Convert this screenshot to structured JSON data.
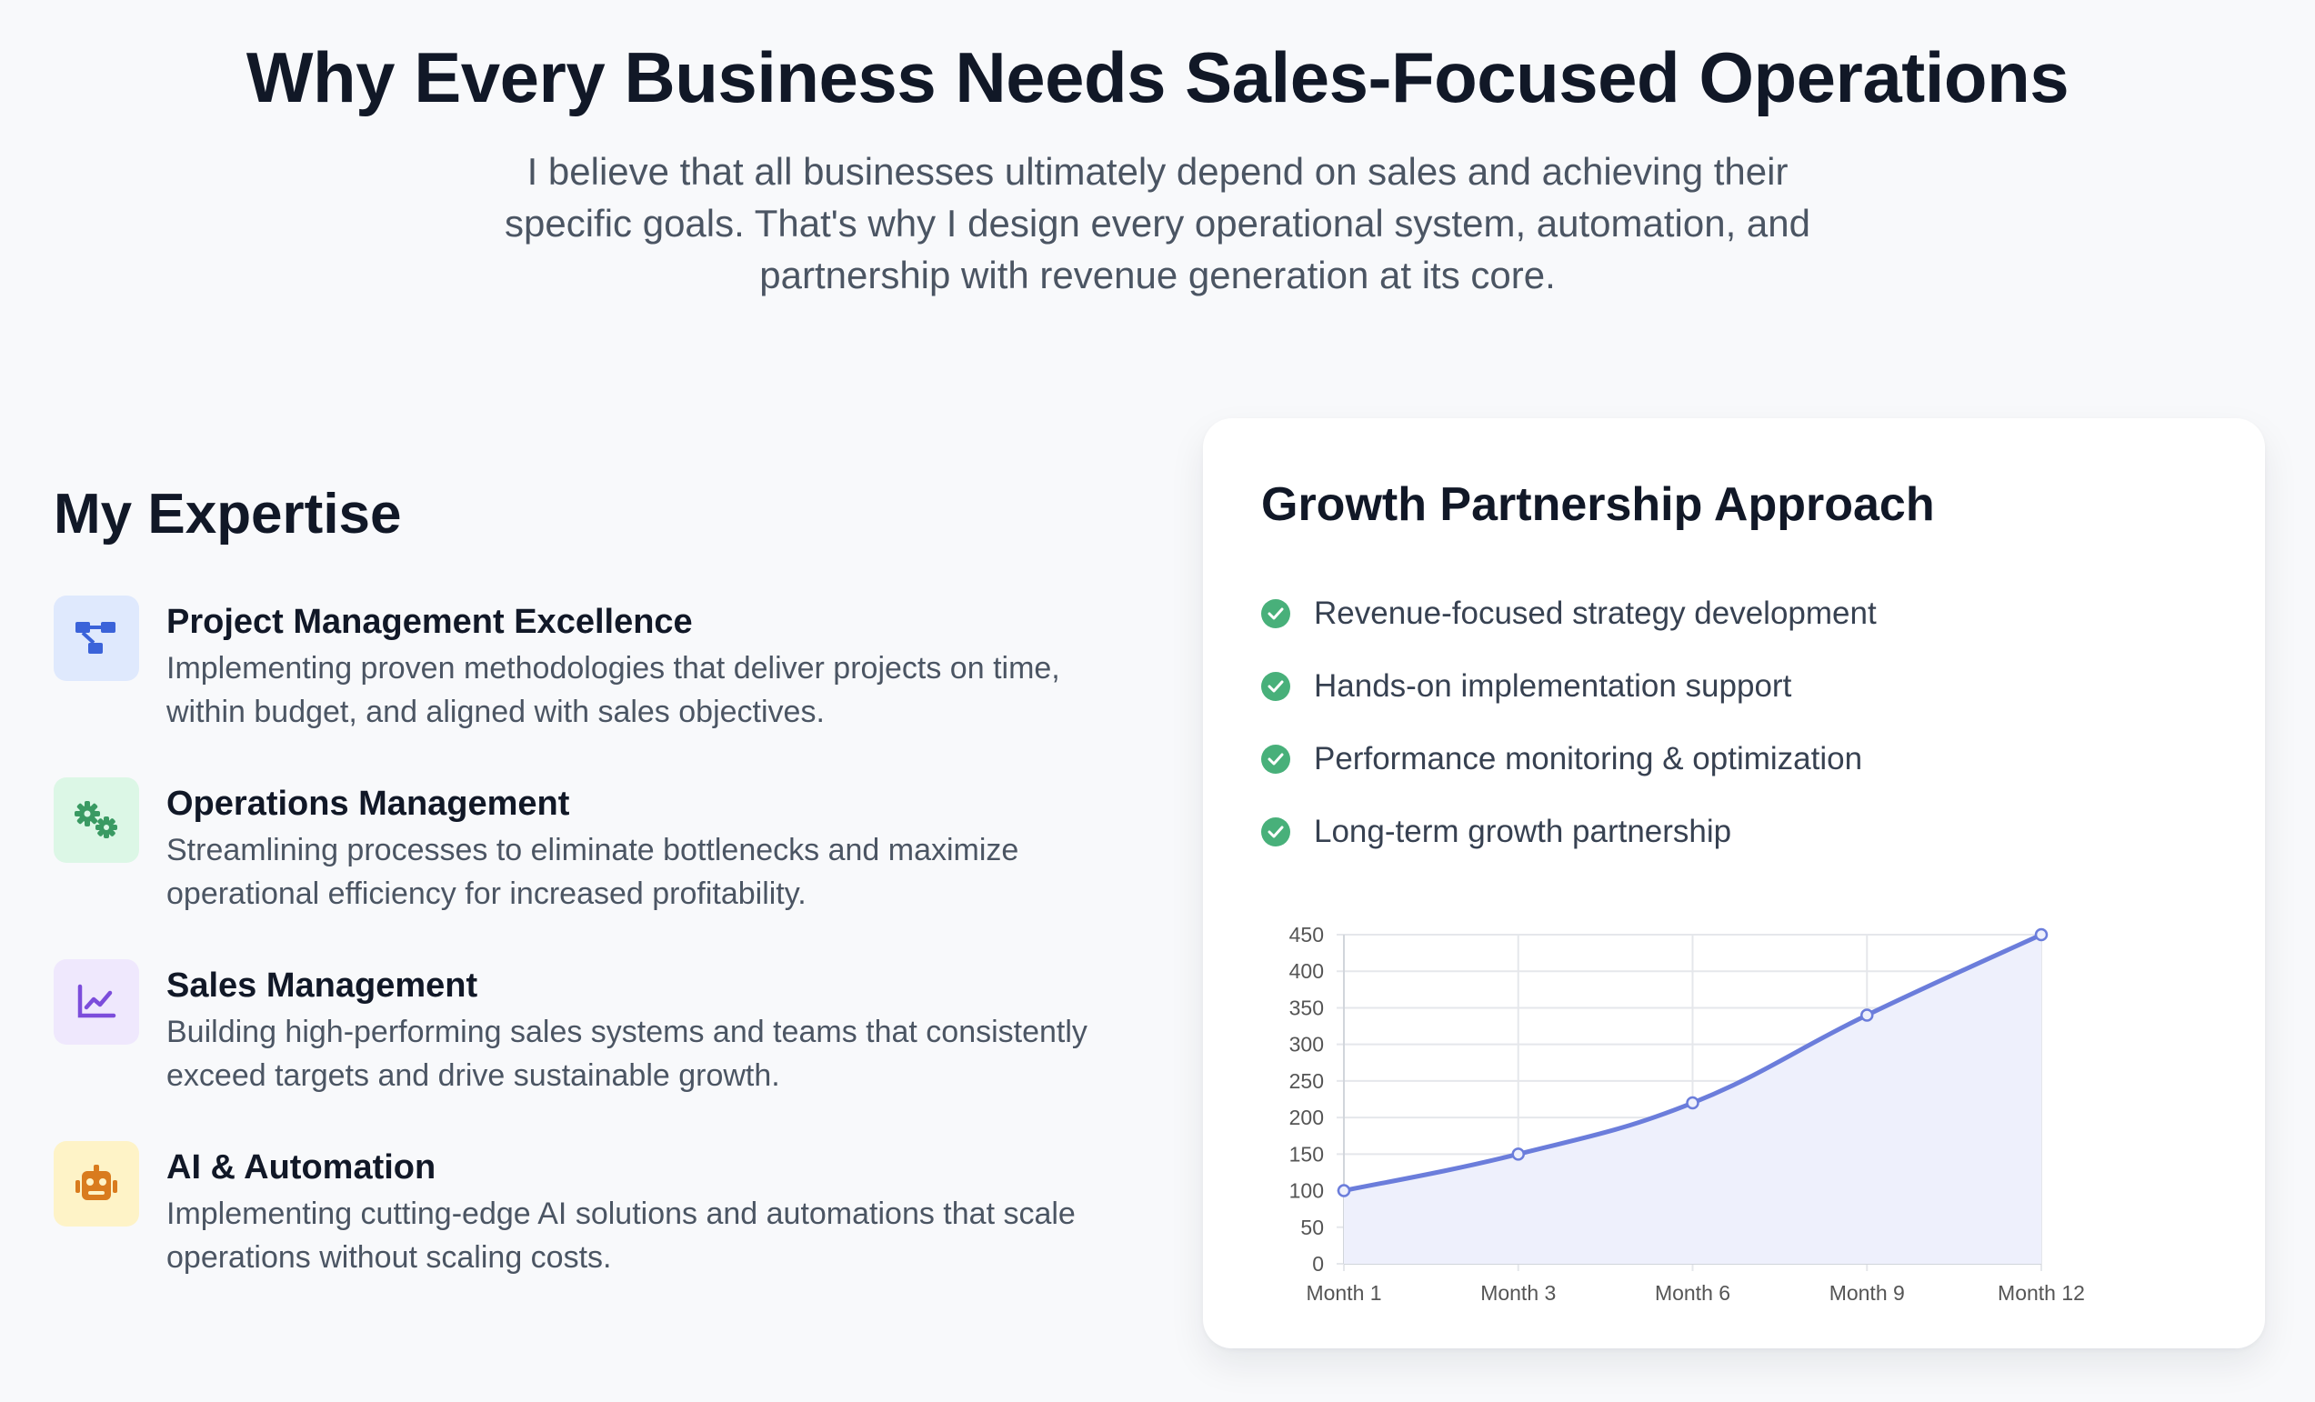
{
  "hero": {
    "title": "Why Every Business Needs Sales-Focused Operations",
    "subtitle": "I believe that all businesses ultimately depend on sales and achieving their specific goals. That's why I design every operational system, automation, and partnership with revenue generation at its core."
  },
  "expertise": {
    "heading": "My Expertise",
    "items": [
      {
        "title": "Project Management Excellence",
        "desc": "Implementing proven methodologies that deliver projects on time, within budget, and aligned with sales objectives.",
        "icon": "project-diagram-icon",
        "icon_color": "#3b63d9",
        "icon_bg": "#dfe9fd"
      },
      {
        "title": "Operations Management",
        "desc": "Streamlining processes to eliminate bottlenecks and maximize operational efficiency for increased profitability.",
        "icon": "gears-icon",
        "icon_color": "#3a9a63",
        "icon_bg": "#dcf7e6"
      },
      {
        "title": "Sales Management",
        "desc": "Building high-performing sales systems and teams that consistently exceed targets and drive sustainable growth.",
        "icon": "chart-line-icon",
        "icon_color": "#7c4ddb",
        "icon_bg": "#efe8fd"
      },
      {
        "title": "AI & Automation",
        "desc": "Implementing cutting-edge AI solutions and automations that scale operations without scaling costs.",
        "icon": "robot-icon",
        "icon_color": "#d97b1e",
        "icon_bg": "#fef3c7"
      }
    ]
  },
  "approach": {
    "title": "Growth Partnership Approach",
    "check_color": "#48b07a",
    "items": [
      "Revenue-focused strategy development",
      "Hands-on implementation support",
      "Performance monitoring & optimization",
      "Long-term growth partnership"
    ]
  },
  "chart_data": {
    "type": "line",
    "categories": [
      "Month 1",
      "Month 3",
      "Month 6",
      "Month 9",
      "Month 12"
    ],
    "series": [
      {
        "values": [
          100,
          150,
          220,
          340,
          450
        ],
        "color": "#6b7ddb",
        "fill": "#eef0fc"
      }
    ],
    "ylim": [
      0,
      450
    ],
    "yticks": [
      0,
      50,
      100,
      150,
      200,
      250,
      300,
      350,
      400,
      450
    ],
    "grid": true,
    "legend": "none"
  }
}
